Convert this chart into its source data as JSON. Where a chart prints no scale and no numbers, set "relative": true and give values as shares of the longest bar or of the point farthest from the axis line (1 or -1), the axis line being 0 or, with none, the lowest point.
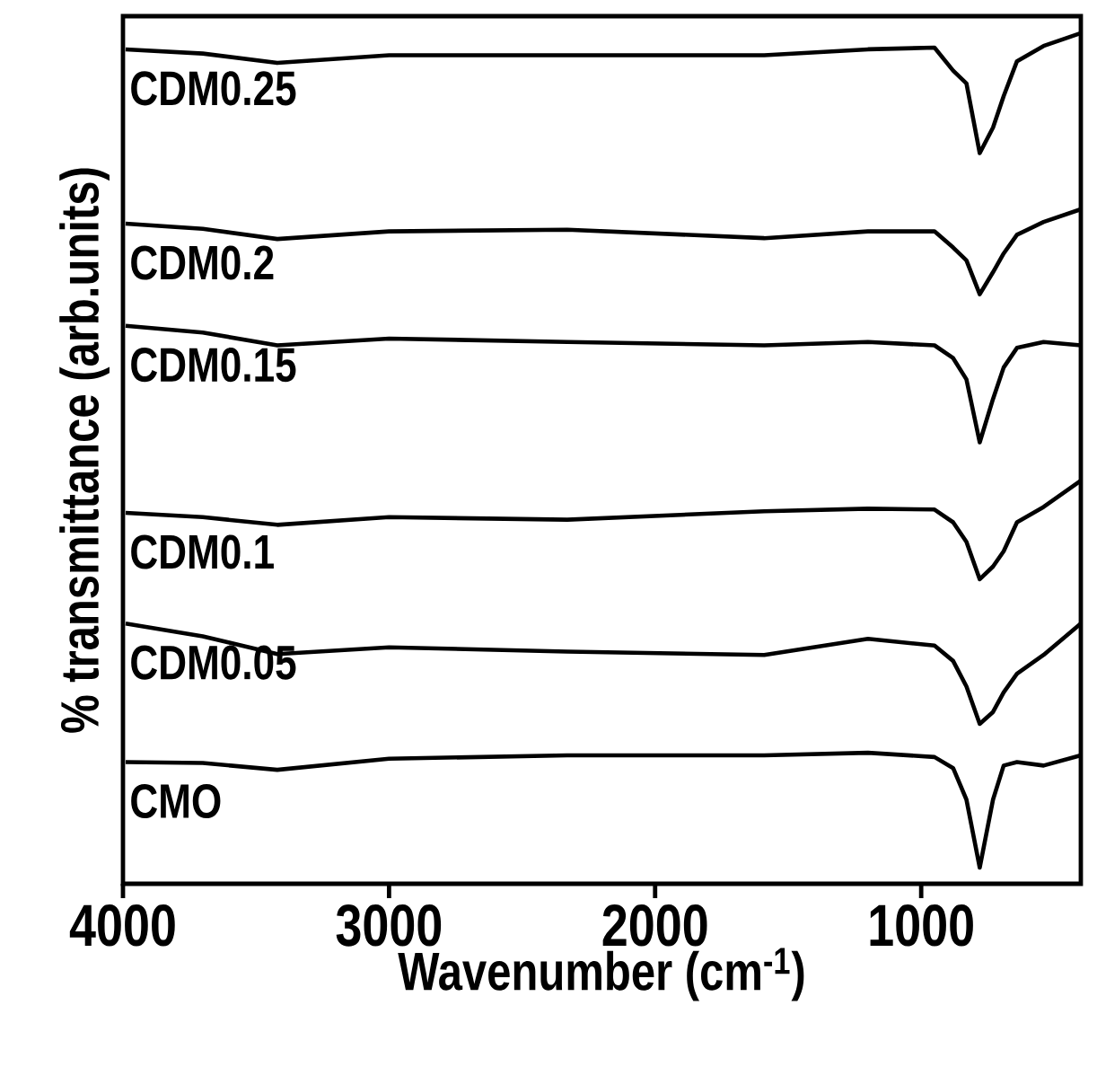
{
  "chart_data": {
    "type": "line",
    "relative": true,
    "xlabel": "Wavenumber (cm$^{-1}$)",
    "ylabel": "% transmittance (arb.units)",
    "xlim": [
      4000,
      400
    ],
    "xticks": [
      4000,
      3000,
      2000,
      1000
    ],
    "line_style": "solid",
    "x": [
      3990,
      3700,
      3420,
      3000,
      2330,
      1590,
      1200,
      950,
      880,
      830,
      780,
      730,
      690,
      640,
      540,
      400
    ],
    "series": [
      {
        "name": "CDM0.25",
        "color": "#000000",
        "values": [
          0.981,
          0.976,
          0.965,
          0.974,
          0.974,
          0.974,
          0.981,
          0.983,
          0.956,
          0.941,
          0.859,
          0.889,
          0.926,
          0.967,
          0.985,
          1.0
        ]
      },
      {
        "name": "CDM0.2",
        "color": "#000000",
        "values": [
          0.776,
          0.77,
          0.758,
          0.767,
          0.769,
          0.759,
          0.767,
          0.767,
          0.748,
          0.733,
          0.693,
          0.719,
          0.741,
          0.763,
          0.778,
          0.793
        ]
      },
      {
        "name": "CDM0.15",
        "color": "#000000",
        "values": [
          0.656,
          0.648,
          0.633,
          0.641,
          0.637,
          0.633,
          0.637,
          0.633,
          0.618,
          0.593,
          0.519,
          0.57,
          0.607,
          0.63,
          0.637,
          0.633
        ]
      },
      {
        "name": "CDM0.1",
        "color": "#000000",
        "values": [
          0.436,
          0.431,
          0.422,
          0.431,
          0.428,
          0.438,
          0.441,
          0.44,
          0.425,
          0.402,
          0.358,
          0.373,
          0.391,
          0.425,
          0.443,
          0.474
        ]
      },
      {
        "name": "CDM0.05",
        "color": "#000000",
        "values": [
          0.306,
          0.291,
          0.27,
          0.278,
          0.273,
          0.269,
          0.288,
          0.28,
          0.262,
          0.232,
          0.188,
          0.202,
          0.225,
          0.247,
          0.269,
          0.306
        ]
      },
      {
        "name": "CMO",
        "color": "#000000",
        "values": [
          0.143,
          0.142,
          0.134,
          0.147,
          0.151,
          0.151,
          0.154,
          0.149,
          0.136,
          0.099,
          0.019,
          0.099,
          0.139,
          0.143,
          0.139,
          0.151
        ]
      }
    ]
  }
}
